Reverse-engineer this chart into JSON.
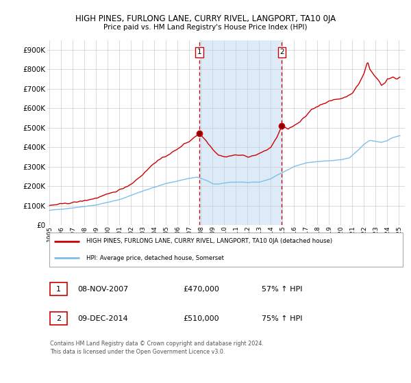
{
  "title": "HIGH PINES, FURLONG LANE, CURRY RIVEL, LANGPORT, TA10 0JA",
  "subtitle": "Price paid vs. HM Land Registry's House Price Index (HPI)",
  "ylabel_ticks": [
    "£0",
    "£100K",
    "£200K",
    "£300K",
    "£400K",
    "£500K",
    "£600K",
    "£700K",
    "£800K",
    "£900K"
  ],
  "ytick_values": [
    0,
    100000,
    200000,
    300000,
    400000,
    500000,
    600000,
    700000,
    800000,
    900000
  ],
  "ylim": [
    0,
    950000
  ],
  "xlim_start": 1994.8,
  "xlim_end": 2025.5,
  "xticks": [
    1995,
    1996,
    1997,
    1998,
    1999,
    2000,
    2001,
    2002,
    2003,
    2004,
    2005,
    2006,
    2007,
    2008,
    2009,
    2010,
    2011,
    2012,
    2013,
    2014,
    2015,
    2016,
    2017,
    2018,
    2019,
    2020,
    2021,
    2022,
    2023,
    2024,
    2025
  ],
  "hpi_line_color": "#7dc0e8",
  "price_line_color": "#cc0000",
  "grid_color": "#cccccc",
  "background_color": "#ffffff",
  "transaction1_x": 2007.86,
  "transaction1_y": 470000,
  "transaction2_x": 2014.94,
  "transaction2_y": 510000,
  "shade_color": "#ddeaf7",
  "legend_line1": "HIGH PINES, FURLONG LANE, CURRY RIVEL, LANGPORT, TA10 0JA (detached house)",
  "legend_line2": "HPI: Average price, detached house, Somerset",
  "footer": "Contains HM Land Registry data © Crown copyright and database right 2024.\nThis data is licensed under the Open Government Licence v3.0."
}
